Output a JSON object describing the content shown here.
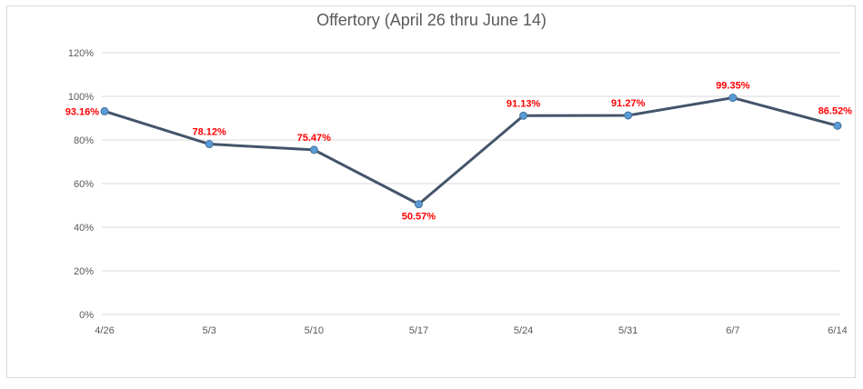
{
  "chart_data": {
    "type": "line",
    "title": "Offertory (April 26 thru June 14)",
    "xlabel": "",
    "ylabel": "",
    "categories": [
      "4/26",
      "5/3",
      "5/10",
      "5/17",
      "5/24",
      "5/31",
      "6/7",
      "6/14"
    ],
    "series": [
      {
        "values": [
          93.16,
          78.12,
          75.47,
          50.57,
          91.13,
          91.27,
          99.35,
          86.52
        ],
        "labels": [
          "93.16%",
          "78.12%",
          "75.47%",
          "50.57%",
          "91.13%",
          "91.27%",
          "99.35%",
          "86.52%"
        ],
        "line_color": "#44546a",
        "marker_color": "#5b9bd5",
        "label_color": "#ff0000"
      }
    ],
    "yticks": [
      "0%",
      "20%",
      "40%",
      "60%",
      "80%",
      "100%",
      "120%"
    ],
    "ytick_values": [
      0,
      20,
      40,
      60,
      80,
      100,
      120
    ],
    "ylim": [
      0,
      120
    ],
    "grid": true,
    "legend": "none"
  }
}
